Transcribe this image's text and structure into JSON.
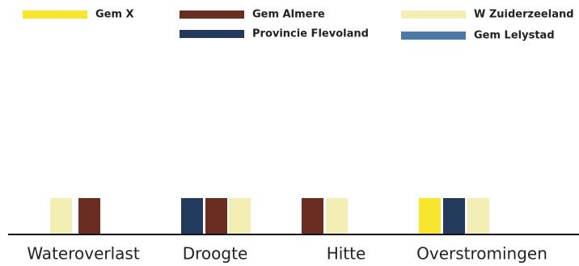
{
  "chart_data": {
    "type": "bar",
    "categories": [
      "Wateroverlast",
      "Droogte",
      "Hitte",
      "Overstromingen"
    ],
    "series": [
      {
        "name": "Gem X",
        "color": "#f7e62b",
        "values": [
          null,
          null,
          null,
          1
        ]
      },
      {
        "name": "Gem Almere",
        "color": "#6b2d1f",
        "values": [
          1,
          1,
          1,
          null
        ]
      },
      {
        "name": "Provincie Flevoland",
        "color": "#223a5c",
        "values": [
          null,
          1,
          null,
          1
        ]
      },
      {
        "name": "W Zuiderzeeland",
        "color": "#f3efb4",
        "values": [
          1,
          1,
          1,
          1
        ]
      },
      {
        "name": "Gem Lelystad",
        "color": "#4a78a8",
        "values": [
          null,
          null,
          null,
          null
        ]
      }
    ]
  }
}
